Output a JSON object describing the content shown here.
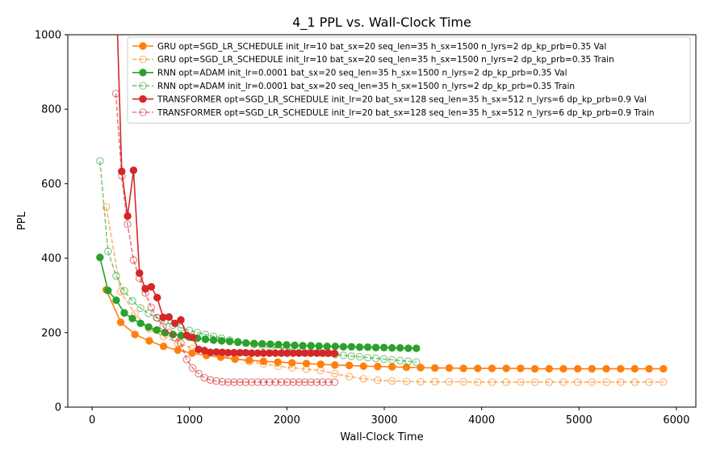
{
  "chart_data": {
    "type": "line",
    "title": "4_1 PPL vs. Wall-Clock Time",
    "xlabel": "Wall-Clock Time",
    "ylabel": "PPL",
    "xlim": [
      -250,
      6200
    ],
    "ylim": [
      0,
      1000
    ],
    "xticks": [
      0,
      1000,
      2000,
      3000,
      4000,
      5000,
      6000
    ],
    "yticks": [
      0,
      200,
      400,
      600,
      800,
      1000
    ],
    "legend_position": "top-right",
    "grid": false,
    "series": [
      {
        "name": "GRU opt=SGD_LR_SCHEDULE init_lr=10 bat_sx=20 seq_len=35 h_sx=1500 n_lyrs=2 dp_kp_prb=0.35 Val",
        "color": "#ff7f0e",
        "style": "solid",
        "marker": "filled",
        "x": [
          145,
          293,
          440,
          587,
          733,
          880,
          1027,
          1173,
          1320,
          1467,
          1613,
          1760,
          1907,
          2053,
          2200,
          2347,
          2493,
          2640,
          2787,
          2933,
          3080,
          3227,
          3373,
          3520,
          3667,
          3813,
          3960,
          4107,
          4253,
          4400,
          4547,
          4693,
          4840,
          4987,
          5133,
          5280,
          5427,
          5573,
          5720,
          5867
        ],
        "y": [
          315,
          228,
          195,
          178,
          163,
          153,
          145,
          139,
          134,
          129,
          126,
          123,
          121,
          119,
          117,
          115,
          113,
          112,
          110,
          109,
          108,
          107,
          106,
          105,
          105,
          104,
          104,
          104,
          104,
          104,
          103,
          103,
          103,
          103,
          103,
          103,
          103,
          103,
          103,
          103
        ]
      },
      {
        "name": "GRU opt=SGD_LR_SCHEDULE init_lr=10 bat_sx=20 seq_len=35 h_sx=1500 n_lyrs=2 dp_kp_prb=0.35 Train",
        "color": "#ff7f0e",
        "style": "dashed",
        "marker": "open",
        "x": [
          145,
          293,
          440,
          587,
          733,
          880,
          1027,
          1173,
          1320,
          1467,
          1613,
          1760,
          1907,
          2053,
          2200,
          2347,
          2493,
          2640,
          2787,
          2933,
          3080,
          3227,
          3373,
          3520,
          3667,
          3813,
          3960,
          4107,
          4253,
          4400,
          4547,
          4693,
          4840,
          4987,
          5133,
          5280,
          5427,
          5573,
          5720,
          5867
        ],
        "y": [
          537,
          310,
          250,
          210,
          190,
          172,
          158,
          148,
          138,
          130,
          122,
          116,
          110,
          106,
          102,
          98,
          90,
          82,
          76,
          72,
          70,
          69,
          68,
          68,
          68,
          68,
          67,
          67,
          67,
          67,
          67,
          67,
          67,
          67,
          67,
          67,
          67,
          67,
          67,
          67
        ]
      },
      {
        "name": "RNN opt=ADAM init_lr=0.0001 bat_sx=20 seq_len=35 h_sx=1500 n_lyrs=2 dp_kp_prb=0.35 Val",
        "color": "#2ca02c",
        "style": "solid",
        "marker": "filled",
        "x": [
          80,
          163,
          247,
          330,
          413,
          497,
          580,
          663,
          747,
          830,
          913,
          997,
          1080,
          1163,
          1247,
          1330,
          1413,
          1497,
          1580,
          1663,
          1747,
          1830,
          1913,
          1997,
          2080,
          2163,
          2247,
          2330,
          2413,
          2497,
          2580,
          2663,
          2747,
          2830,
          2913,
          2997,
          3080,
          3163,
          3247,
          3330
        ],
        "y": [
          402,
          313,
          287,
          253,
          238,
          225,
          215,
          207,
          200,
          195,
          192,
          188,
          185,
          182,
          180,
          178,
          176,
          174,
          172,
          171,
          170,
          169,
          168,
          167,
          166,
          165,
          165,
          164,
          163,
          163,
          162,
          162,
          161,
          161,
          160,
          160,
          159,
          159,
          158,
          158
        ]
      },
      {
        "name": "RNN opt=ADAM init_lr=0.0001 bat_sx=20 seq_len=35 h_sx=1500 n_lyrs=2 dp_kp_prb=0.35 Train",
        "color": "#2ca02c",
        "style": "dashed",
        "marker": "open",
        "x": [
          80,
          163,
          247,
          330,
          413,
          497,
          580,
          663,
          747,
          830,
          913,
          997,
          1080,
          1163,
          1247,
          1330,
          1413,
          1497,
          1580,
          1663,
          1747,
          1830,
          1913,
          1997,
          2080,
          2163,
          2247,
          2330,
          2413,
          2497,
          2580,
          2663,
          2747,
          2830,
          2913,
          2997,
          3080,
          3163,
          3247,
          3330
        ],
        "y": [
          661,
          418,
          352,
          312,
          285,
          266,
          252,
          240,
          230,
          220,
          213,
          206,
          200,
          195,
          190,
          185,
          180,
          176,
          172,
          168,
          165,
          162,
          159,
          156,
          153,
          151,
          148,
          146,
          144,
          141,
          139,
          137,
          135,
          133,
          131,
          129,
          127,
          125,
          123,
          121
        ]
      },
      {
        "name": "TRANSFORMER opt=SGD_LR_SCHEDULE init_lr=20 bat_sx=128 seq_len=35 h_sx=512 n_lyrs=6 dp_kp_prb=0.9 Val",
        "color": "#d62728",
        "style": "solid",
        "marker": "filled",
        "x": [
          243,
          304,
          364,
          425,
          486,
          546,
          607,
          668,
          729,
          789,
          850,
          911,
          971,
          1032,
          1093,
          1153,
          1214,
          1275,
          1336,
          1396,
          1457,
          1518,
          1578,
          1639,
          1700,
          1760,
          1821,
          1882,
          1943,
          2003,
          2064,
          2125,
          2185,
          2246,
          2307,
          2367,
          2428,
          2489
        ],
        "y": [
          1150,
          633,
          513,
          636,
          360,
          318,
          323,
          294,
          241,
          242,
          225,
          234,
          193,
          187,
          155,
          152,
          147,
          148,
          147,
          146,
          146,
          146,
          146,
          145,
          145,
          145,
          145,
          145,
          145,
          145,
          145,
          145,
          145,
          145,
          145,
          145,
          145,
          144
        ]
      },
      {
        "name": "TRANSFORMER opt=SGD_LR_SCHEDULE init_lr=20 bat_sx=128 seq_len=35 h_sx=512 n_lyrs=6 dp_kp_prb=0.9 Train",
        "color": "#d62728",
        "style": "dashed",
        "marker": "open",
        "x": [
          243,
          304,
          364,
          425,
          486,
          546,
          607,
          668,
          729,
          789,
          850,
          911,
          971,
          1032,
          1093,
          1153,
          1214,
          1275,
          1336,
          1396,
          1457,
          1518,
          1578,
          1639,
          1700,
          1760,
          1821,
          1882,
          1943,
          2003,
          2064,
          2125,
          2185,
          2246,
          2307,
          2367,
          2428,
          2489
        ],
        "y": [
          842,
          621,
          491,
          395,
          346,
          307,
          268,
          240,
          217,
          200,
          187,
          172,
          128,
          105,
          90,
          79,
          73,
          70,
          68,
          67,
          67,
          67,
          67,
          67,
          67,
          67,
          67,
          67,
          67,
          67,
          67,
          67,
          67,
          67,
          67,
          67,
          67,
          67
        ]
      }
    ]
  }
}
